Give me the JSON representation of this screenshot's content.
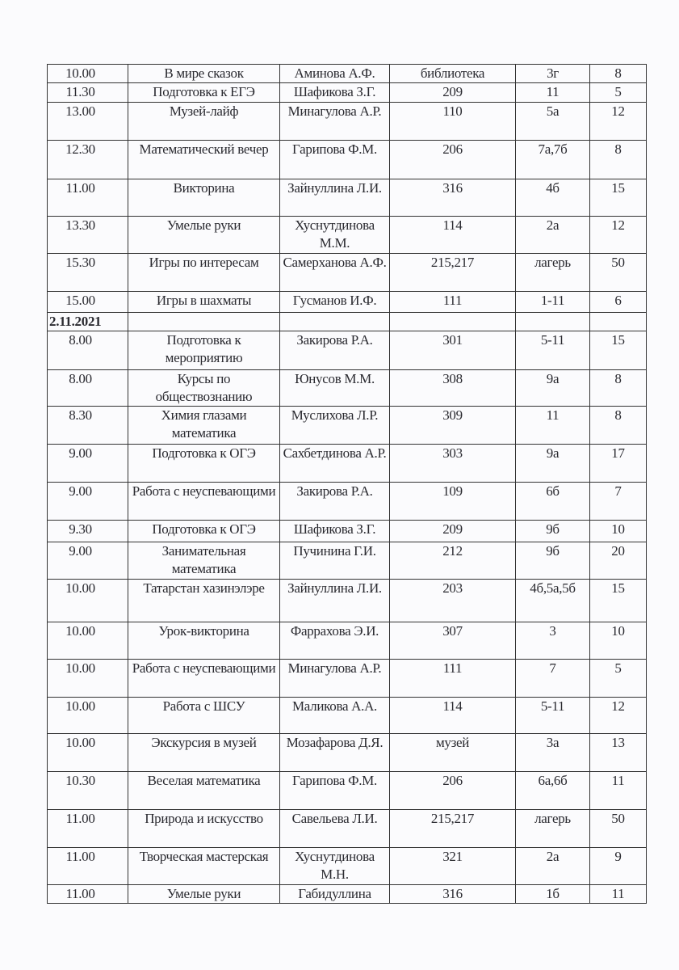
{
  "rows": [
    {
      "time": "10.00",
      "event": "В мире сказок",
      "teacher": "Аминова А.Ф.",
      "room": "библиотека",
      "class": "3г",
      "count": "8"
    },
    {
      "time": "11.30",
      "event": "Подготовка к ЕГЭ",
      "teacher": "Шафикова З.Г.",
      "room": "209",
      "class": "11",
      "count": "5"
    },
    {
      "time": "13.00",
      "event": "Музей-лайф",
      "teacher": "Минагулова А.Р.",
      "room": "110",
      "class": "5а",
      "count": "12"
    },
    {
      "time": "12.30",
      "event": "Математический вечер",
      "teacher": "Гарипова Ф.М.",
      "room": "206",
      "class": "7а,7б",
      "count": "8"
    },
    {
      "time": "11.00",
      "event": "Викторина",
      "teacher": "Зайнуллина Л.И.",
      "room": "316",
      "class": "4б",
      "count": "15"
    },
    {
      "time": "13.30",
      "event": "Умелые руки",
      "teacher": "Хуснутдинова М.М.",
      "room": "114",
      "class": "2а",
      "count": "12"
    },
    {
      "time": "15.30",
      "event": "Игры по интересам",
      "teacher": "Самерханова А.Ф.",
      "room": "215,217",
      "class": "лагерь",
      "count": "50"
    },
    {
      "time": "15.00",
      "event": "Игры в шахматы",
      "teacher": "Гусманов И.Ф.",
      "room": "111",
      "class": "1-11",
      "count": "6"
    },
    {
      "date": "2.11.2021"
    },
    {
      "time": "8.00",
      "event": "Подготовка к мероприятию",
      "teacher": "Закирова Р.А.",
      "room": "301",
      "class": "5-11",
      "count": "15"
    },
    {
      "time": "8.00",
      "event": "Курсы по обществознанию",
      "teacher": "Юнусов М.М.",
      "room": "308",
      "class": "9а",
      "count": "8"
    },
    {
      "time": "8.30",
      "event": "Химия глазами математика",
      "teacher": "Муслихова Л.Р.",
      "room": "309",
      "class": "11",
      "count": "8"
    },
    {
      "time": "9.00",
      "event": "Подготовка к ОГЭ",
      "teacher": "Сахбетдинова А.Р.",
      "room": "303",
      "class": "9а",
      "count": "17"
    },
    {
      "time": "9.00",
      "event": "Работа с неуспевающими",
      "teacher": "Закирова Р.А.",
      "room": "109",
      "class": "6б",
      "count": "7"
    },
    {
      "time": "9.30",
      "event": "Подготовка к ОГЭ",
      "teacher": "Шафикова З.Г.",
      "room": "209",
      "class": "9б",
      "count": "10"
    },
    {
      "time": "9.00",
      "event": "Занимательная математика",
      "teacher": "Пучинина Г.И.",
      "room": "212",
      "class": "9б",
      "count": "20"
    },
    {
      "time": "10.00",
      "event": "Татарстан хазинэлэре",
      "teacher": "Зайнуллина Л.И.",
      "room": "203",
      "class": "4б,5а,5б",
      "count": "15"
    },
    {
      "time": "10.00",
      "event": "Урок-викторина",
      "teacher": "Фаррахова Э.И.",
      "room": "307",
      "class": "3",
      "count": "10"
    },
    {
      "time": "10.00",
      "event": "Работа с неуспевающими",
      "teacher": "Минагулова А.Р.",
      "room": "111",
      "class": "7",
      "count": "5"
    },
    {
      "time": "10.00",
      "event": "Работа с ШСУ",
      "teacher": "Маликова А.А.",
      "room": "114",
      "class": "5-11",
      "count": "12"
    },
    {
      "time": "10.00",
      "event": "Экскурсия в музей",
      "teacher": "Мозафарова Д.Я.",
      "room": "музей",
      "class": "3а",
      "count": "13"
    },
    {
      "time": "10.30",
      "event": "Веселая математика",
      "teacher": "Гарипова Ф.М.",
      "room": "206",
      "class": "6а,6б",
      "count": "11"
    },
    {
      "time": "11.00",
      "event": "Природа и искусство",
      "teacher": "Савельева Л.И.",
      "room": "215,217",
      "class": "лагерь",
      "count": "50"
    },
    {
      "time": "11.00",
      "event": "Творческая мастерская",
      "teacher": "Хуснутдинова М.Н.",
      "room": "321",
      "class": "2а",
      "count": "9"
    },
    {
      "time": "11.00",
      "event": "Умелые руки",
      "teacher": "Габидуллина",
      "room": "316",
      "class": "1б",
      "count": "11"
    }
  ]
}
